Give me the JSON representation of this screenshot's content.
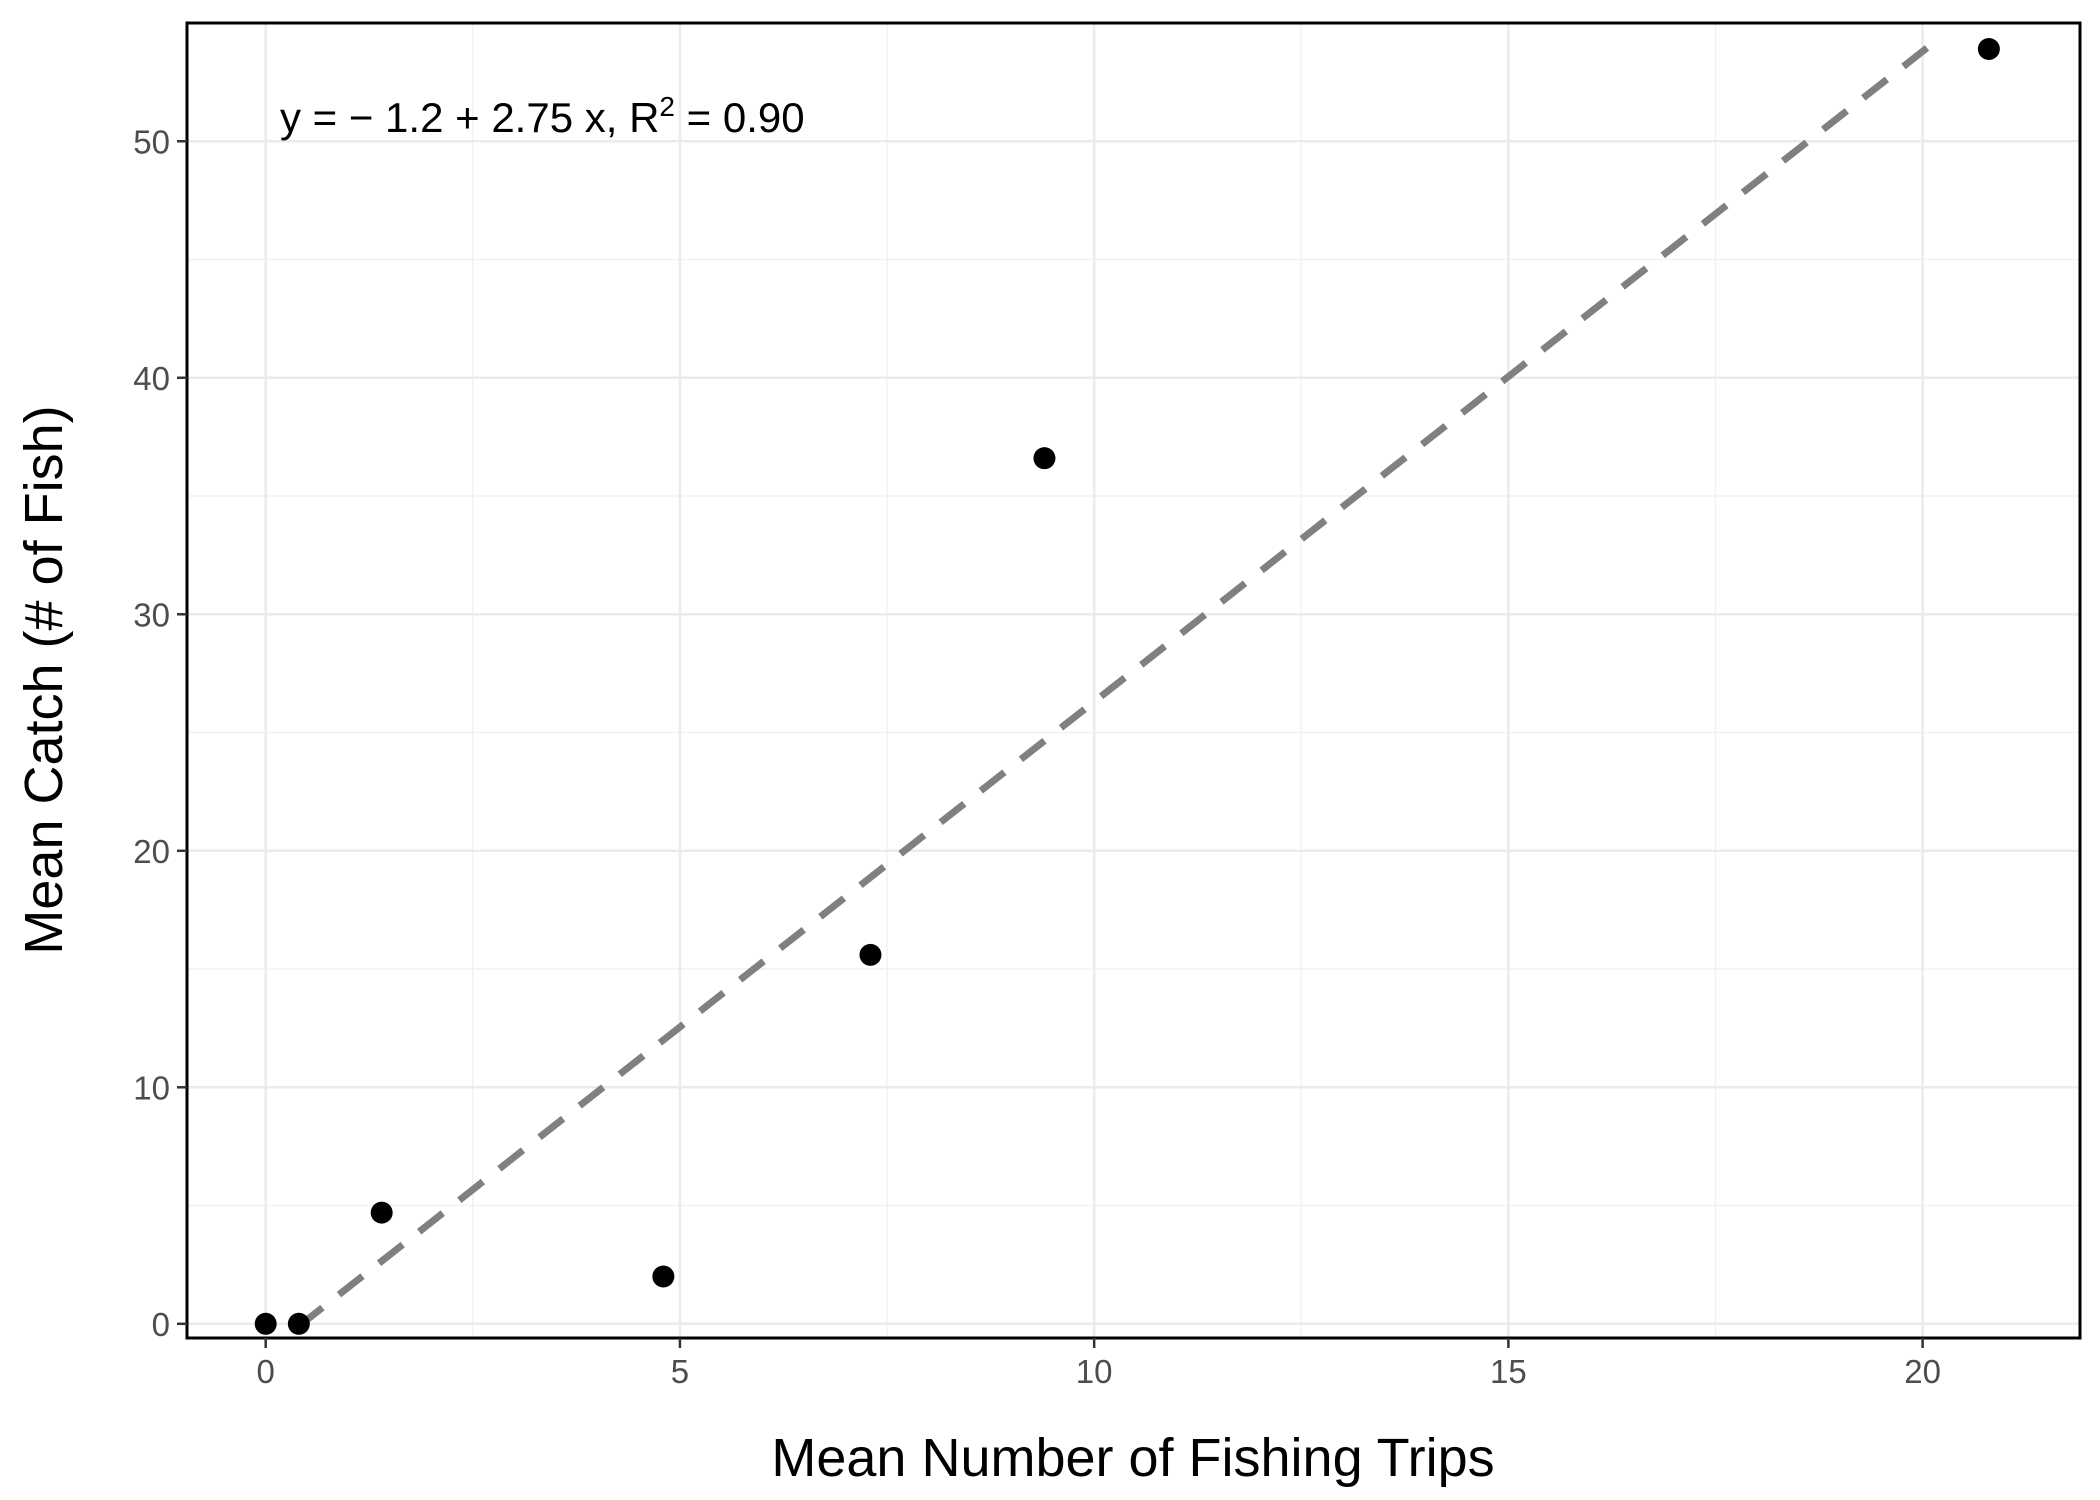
{
  "chart_data": {
    "type": "scatter",
    "title": "",
    "xlabel": "Mean Number of Fishing Trips",
    "ylabel": "Mean Catch (# of Fish)",
    "xlim": [
      -0.95,
      21.9
    ],
    "ylim": [
      -0.6,
      55.0
    ],
    "grid": true,
    "x_ticks": [
      0,
      5,
      10,
      15,
      20
    ],
    "y_ticks": [
      0,
      10,
      20,
      30,
      40,
      50
    ],
    "points": [
      {
        "x": 0.0,
        "y": 0.0
      },
      {
        "x": 0.4,
        "y": 0.0
      },
      {
        "x": 1.4,
        "y": 4.7
      },
      {
        "x": 4.8,
        "y": 2.0
      },
      {
        "x": 7.3,
        "y": 15.6
      },
      {
        "x": 9.4,
        "y": 36.6
      },
      {
        "x": 20.8,
        "y": 53.9
      }
    ],
    "trendline": {
      "intercept": -1.2,
      "slope": 2.75,
      "x_range": [
        0.4,
        20.2
      ],
      "style": "dashed",
      "color": "#808080"
    },
    "annotation": {
      "prefix": "y = − 1.2 + 2.75 x, R",
      "superscript": "2",
      "suffix": " = 0.90"
    },
    "point_color": "#000000"
  }
}
